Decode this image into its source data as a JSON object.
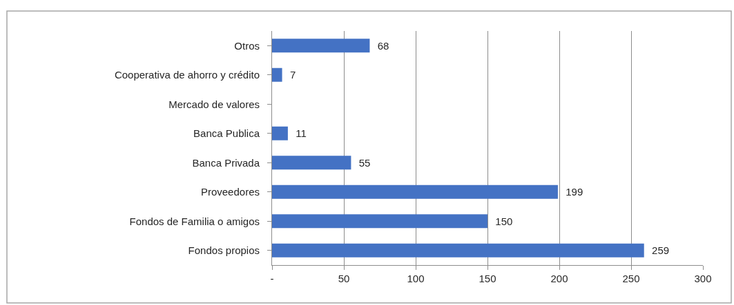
{
  "chart_data": {
    "type": "bar",
    "orientation": "horizontal",
    "categories": [
      "Otros",
      "Cooperativa de ahorro y crédito",
      "Mercado de valores",
      "Banca Publica",
      "Banca Privada",
      "Proveedores",
      "Fondos de Familia o amigos",
      "Fondos propios"
    ],
    "values": [
      68,
      7,
      null,
      11,
      55,
      199,
      150,
      259
    ],
    "color": "#4472c4",
    "xlim": [
      0,
      300
    ],
    "xticks": [
      {
        "value": 0,
        "label": "-"
      },
      50,
      100,
      150,
      200,
      250,
      300
    ],
    "grid": "x",
    "data_labels": true
  }
}
